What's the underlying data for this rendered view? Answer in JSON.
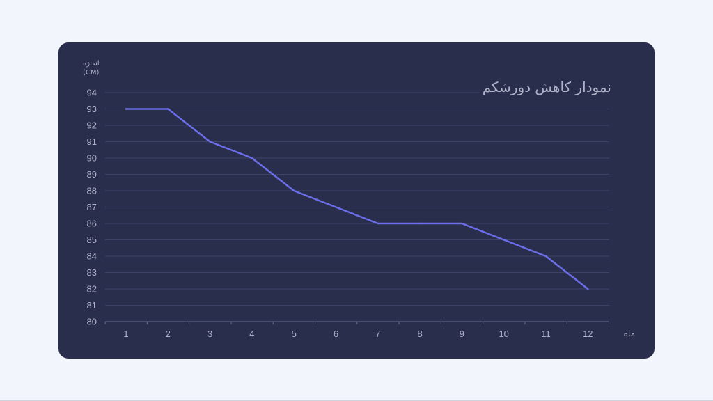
{
  "chart_data": {
    "type": "line",
    "title": "نمودار کاهش دورشکم",
    "xlabel": "ماه",
    "ylabel_line1": "اندازه",
    "ylabel_line2": "(CM)",
    "x": [
      1,
      2,
      3,
      4,
      5,
      6,
      7,
      8,
      9,
      10,
      11,
      12
    ],
    "series": [
      {
        "values": [
          93,
          93,
          91,
          90,
          88,
          87,
          86,
          86,
          86,
          85,
          84,
          82
        ]
      }
    ],
    "ylim": [
      80,
      94
    ],
    "yticks": [
      80,
      81,
      82,
      83,
      84,
      85,
      86,
      87,
      88,
      89,
      90,
      91,
      92,
      93,
      94
    ],
    "grid": true,
    "colors": {
      "line": "#6b6ee8",
      "background": "#2a2e4d",
      "text": "#aeb3c9",
      "grid": "#3d4266"
    }
  }
}
